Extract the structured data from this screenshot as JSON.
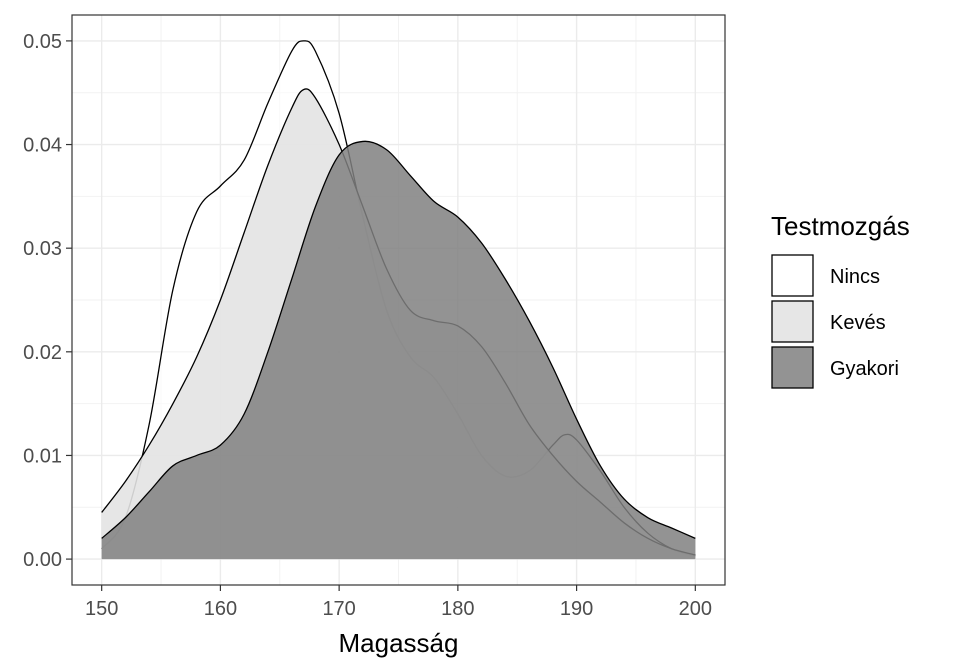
{
  "chart_data": {
    "type": "area",
    "subtype": "density",
    "xlabel": "Magasság",
    "ylabel": "",
    "xlim": [
      147.5,
      202.5
    ],
    "ylim": [
      -0.0025,
      0.0525
    ],
    "x_ticks": [
      150,
      160,
      170,
      180,
      190,
      200
    ],
    "x_tick_labels": [
      "150",
      "160",
      "170",
      "180",
      "190",
      "200"
    ],
    "y_ticks": [
      0.0,
      0.01,
      0.02,
      0.03,
      0.04,
      0.05
    ],
    "y_tick_labels": [
      "0.00",
      "0.01",
      "0.02",
      "0.03",
      "0.04",
      "0.05"
    ],
    "grid": true,
    "legend": {
      "title": "Testmozgás",
      "position": "right"
    },
    "series": [
      {
        "name": "Nincs",
        "fill": "#ffffff",
        "opacity": 0.5,
        "points": [
          [
            150,
            0.001
          ],
          [
            152,
            0.004
          ],
          [
            154,
            0.013
          ],
          [
            156,
            0.026
          ],
          [
            158,
            0.0335
          ],
          [
            160,
            0.036
          ],
          [
            162,
            0.0385
          ],
          [
            164,
            0.044
          ],
          [
            166,
            0.049
          ],
          [
            167,
            0.05
          ],
          [
            168,
            0.049
          ],
          [
            170,
            0.043
          ],
          [
            172,
            0.033
          ],
          [
            174,
            0.024
          ],
          [
            176,
            0.0195
          ],
          [
            178,
            0.0175
          ],
          [
            180,
            0.014
          ],
          [
            182,
            0.01
          ],
          [
            184,
            0.008
          ],
          [
            186,
            0.0085
          ],
          [
            188,
            0.011
          ],
          [
            189,
            0.012
          ],
          [
            190,
            0.0115
          ],
          [
            192,
            0.0085
          ],
          [
            194,
            0.005
          ],
          [
            196,
            0.0025
          ],
          [
            198,
            0.001
          ],
          [
            200,
            0.0003
          ]
        ]
      },
      {
        "name": "Kevés",
        "fill": "#e3e3e3",
        "opacity": 0.9,
        "points": [
          [
            150,
            0.0045
          ],
          [
            152,
            0.0075
          ],
          [
            154,
            0.011
          ],
          [
            156,
            0.015
          ],
          [
            158,
            0.0195
          ],
          [
            160,
            0.025
          ],
          [
            162,
            0.0315
          ],
          [
            164,
            0.038
          ],
          [
            166,
            0.0435
          ],
          [
            167,
            0.0453
          ],
          [
            168,
            0.0445
          ],
          [
            170,
            0.04
          ],
          [
            172,
            0.034
          ],
          [
            174,
            0.028
          ],
          [
            176,
            0.024
          ],
          [
            178,
            0.023
          ],
          [
            180,
            0.0225
          ],
          [
            182,
            0.0205
          ],
          [
            184,
            0.017
          ],
          [
            186,
            0.013
          ],
          [
            188,
            0.01
          ],
          [
            190,
            0.0075
          ],
          [
            192,
            0.0055
          ],
          [
            194,
            0.0035
          ],
          [
            196,
            0.002
          ],
          [
            198,
            0.001
          ],
          [
            200,
            0.0004
          ]
        ]
      },
      {
        "name": "Gyakori",
        "fill": "#808080",
        "opacity": 0.85,
        "points": [
          [
            150,
            0.002
          ],
          [
            152,
            0.004
          ],
          [
            154,
            0.0065
          ],
          [
            156,
            0.009
          ],
          [
            158,
            0.01
          ],
          [
            160,
            0.011
          ],
          [
            162,
            0.014
          ],
          [
            164,
            0.02
          ],
          [
            166,
            0.027
          ],
          [
            168,
            0.034
          ],
          [
            170,
            0.039
          ],
          [
            172,
            0.0403
          ],
          [
            174,
            0.0395
          ],
          [
            176,
            0.037
          ],
          [
            178,
            0.0345
          ],
          [
            180,
            0.033
          ],
          [
            182,
            0.0305
          ],
          [
            184,
            0.027
          ],
          [
            186,
            0.023
          ],
          [
            188,
            0.0185
          ],
          [
            190,
            0.0135
          ],
          [
            192,
            0.009
          ],
          [
            194,
            0.0058
          ],
          [
            196,
            0.004
          ],
          [
            198,
            0.003
          ],
          [
            200,
            0.002
          ]
        ]
      }
    ]
  }
}
